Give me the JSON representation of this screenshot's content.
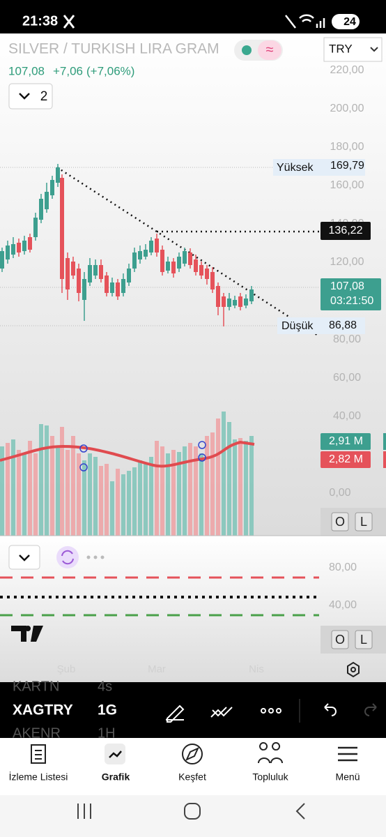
{
  "status": {
    "time": "21:38",
    "battery": "24"
  },
  "header": {
    "symbol": "SILVER / TURKISH LIRA GRAM",
    "currency": "TRY",
    "price": "107,08",
    "change": "+7,06",
    "change_pct": "(+7,06%)",
    "indicator_count": "2"
  },
  "price_axis": {
    "ticks": [
      "220,00",
      "200,00",
      "180,00",
      "160,00",
      "140,00",
      "120,00",
      "80,00",
      "60,00",
      "40,00",
      "0,00"
    ]
  },
  "labels": {
    "high": {
      "label": "Yüksek",
      "value": "169,79"
    },
    "level": "136,22",
    "last": {
      "price": "107,08",
      "countdown": "03:21:50"
    },
    "low": {
      "label": "Düşük",
      "value": "86,88"
    }
  },
  "volume": {
    "buy": "2,91 M",
    "sell": "2,82 M"
  },
  "pane_buttons": {
    "main": [
      "O",
      "L"
    ],
    "indicator": [
      "O",
      "L"
    ]
  },
  "indicator_axis": {
    "ticks": [
      "80,00",
      "40,00"
    ]
  },
  "time_axis": {
    "ticks": [
      "Şub",
      "Mar",
      "Nis"
    ]
  },
  "toolbar": {
    "symbols": [
      {
        "name": "KARTN",
        "interval": "4s"
      },
      {
        "name": "XAGTRY",
        "interval": "1G"
      },
      {
        "name": "AKENR",
        "interval": "1H"
      }
    ]
  },
  "nav": {
    "items": [
      "İzleme Listesi",
      "Grafik",
      "Keşfet",
      "Topluluk",
      "Menü"
    ]
  }
}
